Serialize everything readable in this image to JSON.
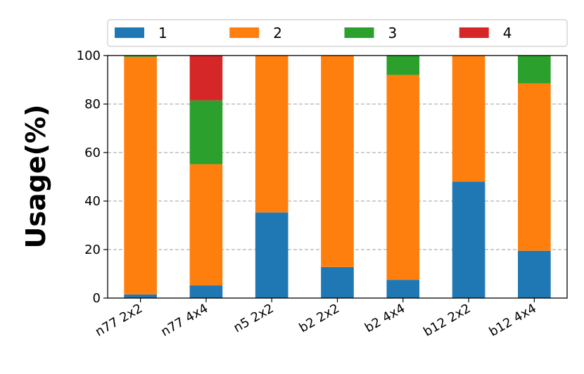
{
  "chart_data": {
    "type": "bar",
    "stacked": true,
    "categories": [
      "n77 2x2",
      "n77 4x4",
      "n5 2x2",
      "b2 2x2",
      "b2 4x4",
      "b12 2x2",
      "b12 4x4"
    ],
    "series": [
      {
        "name": "1",
        "color": "#1f77b4",
        "values": [
          1.5,
          5.2,
          35.3,
          12.8,
          7.5,
          48.0,
          19.5
        ]
      },
      {
        "name": "2",
        "color": "#ff7f0e",
        "values": [
          98.0,
          50.0,
          64.7,
          87.2,
          84.5,
          52.0,
          69.0
        ]
      },
      {
        "name": "3",
        "color": "#2ca02c",
        "values": [
          0.5,
          26.3,
          0.0,
          0.0,
          8.0,
          0.0,
          11.5
        ]
      },
      {
        "name": "4",
        "color": "#d62728",
        "values": [
          0.0,
          18.5,
          0.0,
          0.0,
          0.0,
          0.0,
          0.0
        ]
      }
    ],
    "title": "",
    "xlabel": "",
    "ylabel": "Usage(%)",
    "ylim": [
      0,
      100
    ],
    "yticks": [
      0,
      20,
      40,
      60,
      80,
      100
    ],
    "grid": "y-dashed",
    "legend": "top, single row"
  }
}
